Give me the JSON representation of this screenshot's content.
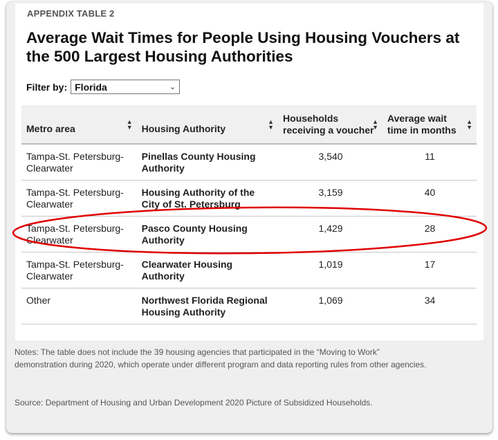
{
  "kicker": "APPENDIX TABLE 2",
  "title": "Average Wait Times for People Using Housing Vouchers at the 500 Largest Housing Authorities",
  "filter": {
    "label": "Filter by:",
    "value": "Florida"
  },
  "table": {
    "headers": [
      "Metro area",
      "Housing Authority",
      "Households receiving a voucher",
      "Average wait time in months"
    ],
    "rows": [
      {
        "metro": "Tampa-St. Petersburg-Clearwater",
        "authority": "Pinellas County Housing Authority",
        "households": "3,540",
        "wait": "11"
      },
      {
        "metro": "Tampa-St. Petersburg-Clearwater",
        "authority": "Housing Authority of the City of St. Petersburg",
        "households": "3,159",
        "wait": "40"
      },
      {
        "metro": "Tampa-St. Petersburg-Clearwater",
        "authority": "Pasco County Housing Authority",
        "households": "1,429",
        "wait": "28"
      },
      {
        "metro": "Tampa-St. Petersburg-Clearwater",
        "authority": "Clearwater Housing Authority",
        "households": "1,019",
        "wait": "17"
      },
      {
        "metro": "Other",
        "authority": "Northwest Florida Regional Housing Authority",
        "households": "1,069",
        "wait": "34"
      }
    ]
  },
  "highlight_color": "#e00000",
  "notes": "Notes: The table does not include the 39 housing agencies that participated in the “Moving to Work” demonstration during 2020, which operate under different program and data reporting rules from other agencies.",
  "source": "Source: Department of Housing and Urban Development 2020 Picture of Subsidized Households."
}
